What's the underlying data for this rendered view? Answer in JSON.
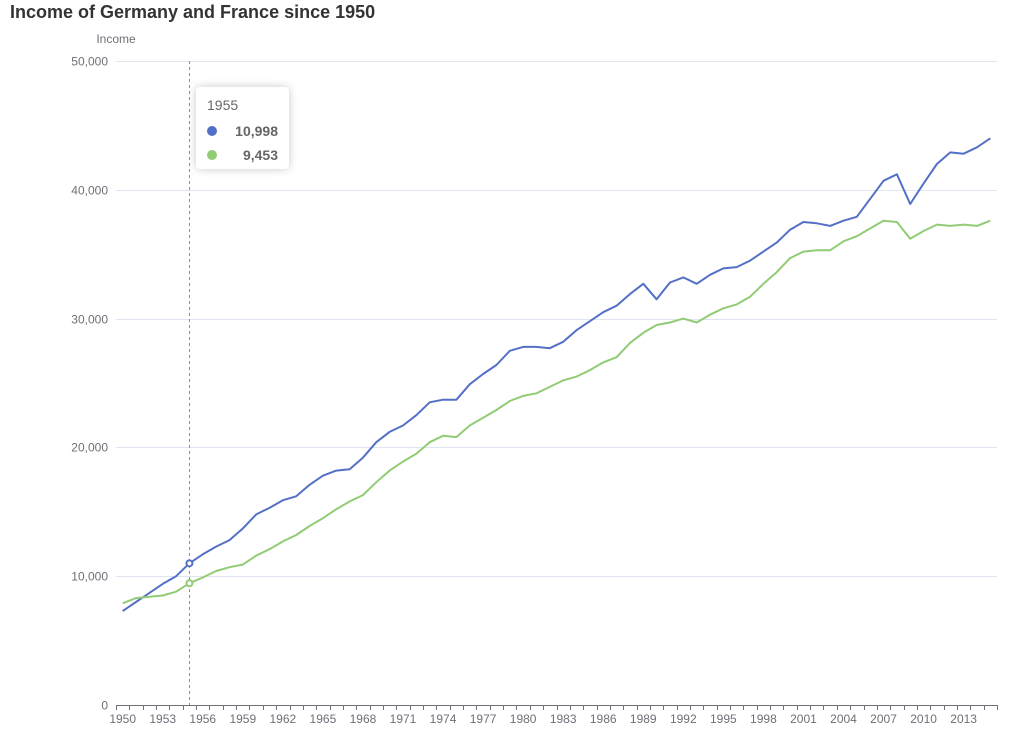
{
  "chart_data": {
    "type": "line",
    "title": "Income of Germany and France since 1950",
    "ylabel": "Income",
    "xlabel": "",
    "ylim": [
      0,
      50000
    ],
    "yticks": [
      0,
      10000,
      20000,
      30000,
      40000,
      50000
    ],
    "ytick_labels": [
      "0",
      "10,000",
      "20,000",
      "30,000",
      "40,000",
      "50,000"
    ],
    "xtick_labels": [
      "1950",
      "1953",
      "1956",
      "1959",
      "1962",
      "1965",
      "1968",
      "1971",
      "1974",
      "1977",
      "1980",
      "1983",
      "1986",
      "1989",
      "1992",
      "1995",
      "1998",
      "2001",
      "2004",
      "2007",
      "2010",
      "2013"
    ],
    "grid": true,
    "x": [
      1950,
      1951,
      1952,
      1953,
      1954,
      1955,
      1956,
      1957,
      1958,
      1959,
      1960,
      1961,
      1962,
      1963,
      1964,
      1965,
      1966,
      1967,
      1968,
      1969,
      1970,
      1971,
      1972,
      1973,
      1974,
      1975,
      1976,
      1977,
      1978,
      1979,
      1980,
      1981,
      1982,
      1983,
      1984,
      1985,
      1986,
      1987,
      1988,
      1989,
      1990,
      1991,
      1992,
      1993,
      1994,
      1995,
      1996,
      1997,
      1998,
      1999,
      2000,
      2001,
      2002,
      2003,
      2004,
      2005,
      2006,
      2007,
      2008,
      2009,
      2010,
      2011,
      2012,
      2013,
      2014,
      2015
    ],
    "series": [
      {
        "color": "#5470c6",
        "values": [
          7300,
          8000,
          8700,
          9400,
          10000,
          10998,
          11700,
          12300,
          12800,
          13700,
          14800,
          15300,
          15900,
          16200,
          17100,
          17800,
          18200,
          18300,
          19200,
          20400,
          21200,
          21700,
          22500,
          23500,
          23700,
          23700,
          24900,
          25700,
          26400,
          27500,
          27800,
          27800,
          27700,
          28200,
          29100,
          29800,
          30500,
          31000,
          31900,
          32700,
          31500,
          32800,
          33200,
          32700,
          33400,
          33900,
          34000,
          34500,
          35200,
          35900,
          36900,
          37500,
          37400,
          37200,
          37600,
          37900,
          39300,
          40700,
          41200,
          38900,
          40500,
          42000,
          42900,
          42800,
          43300,
          44000
        ]
      },
      {
        "color": "#91cc75",
        "values": [
          7900,
          8300,
          8400,
          8500,
          8800,
          9453,
          9900,
          10400,
          10700,
          10900,
          11600,
          12100,
          12700,
          13200,
          13900,
          14500,
          15200,
          15800,
          16300,
          17300,
          18200,
          18900,
          19500,
          20400,
          20900,
          20800,
          21700,
          22300,
          22900,
          23600,
          24000,
          24200,
          24700,
          25200,
          25500,
          26000,
          26600,
          27000,
          28100,
          28900,
          29500,
          29700,
          30000,
          29700,
          30300,
          30800,
          31100,
          31700,
          32700,
          33600,
          34700,
          35200,
          35300,
          35300,
          36000,
          36400,
          37000,
          37600,
          37500,
          36200,
          36800,
          37300,
          37200,
          37300,
          37200,
          37600
        ]
      }
    ],
    "tooltip": {
      "title": "1955",
      "rows": [
        {
          "value": "10,998",
          "color": "#5470c6"
        },
        {
          "value": "9,453",
          "color": "#91cc75"
        }
      ],
      "x": 1955
    }
  }
}
